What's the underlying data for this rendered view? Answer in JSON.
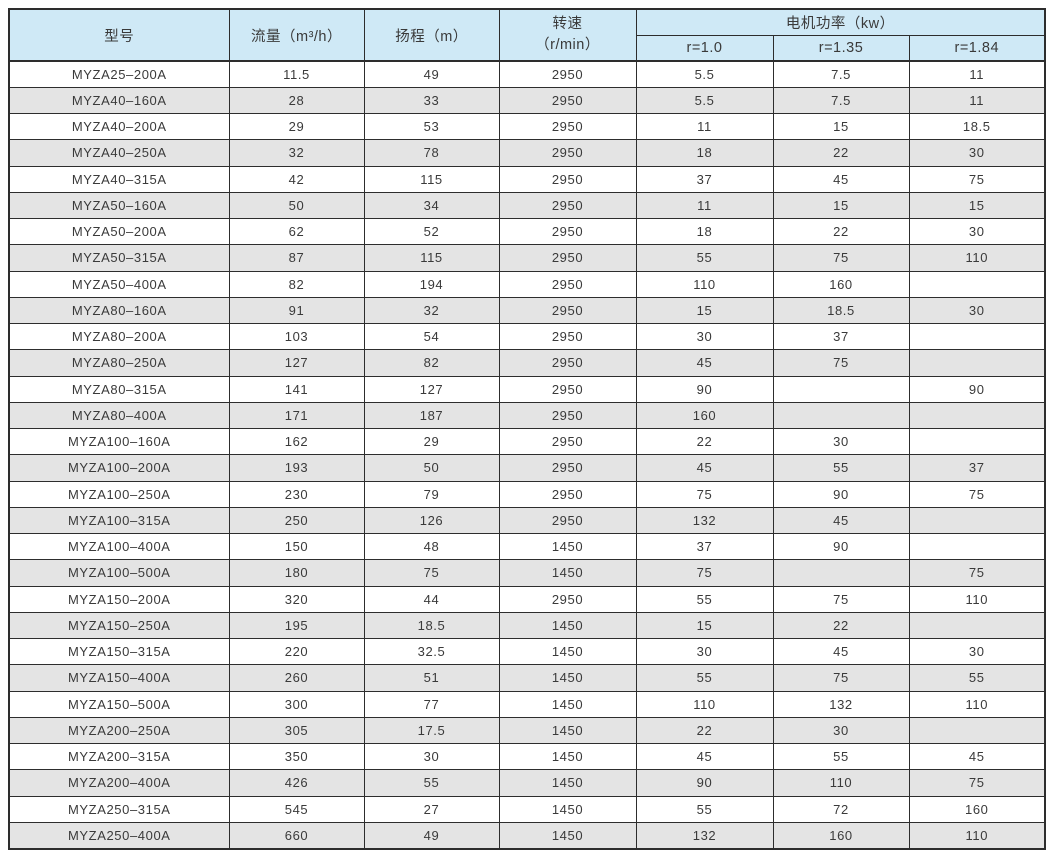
{
  "colors": {
    "header_bg": "#cfe9f6",
    "row_even_bg": "#e4e4e4",
    "row_odd_bg": "#ffffff",
    "border": "#2d2d2d",
    "text": "#3a3a3a"
  },
  "table": {
    "headers": {
      "model": "型号",
      "flow": "流量（m³/h）",
      "head": "扬程（m）",
      "speed_line1": "转速",
      "speed_line2": "（r/min）",
      "power_group": "电机功率（kw）",
      "power_cols": [
        "r=1.0",
        "r=1.35",
        "r=1.84"
      ]
    },
    "column_keys": [
      "model",
      "flow",
      "head",
      "speed",
      "power-r1-0",
      "power-r1-35",
      "power-r1-84"
    ],
    "rows": [
      [
        "MYZA25–200A",
        "11.5",
        "49",
        "2950",
        "5.5",
        "7.5",
        "11"
      ],
      [
        "MYZA40–160A",
        "28",
        "33",
        "2950",
        "5.5",
        "7.5",
        "11"
      ],
      [
        "MYZA40–200A",
        "29",
        "53",
        "2950",
        "11",
        "15",
        "18.5"
      ],
      [
        "MYZA40–250A",
        "32",
        "78",
        "2950",
        "18",
        "22",
        "30"
      ],
      [
        "MYZA40–315A",
        "42",
        "115",
        "2950",
        "37",
        "45",
        "75"
      ],
      [
        "MYZA50–160A",
        "50",
        "34",
        "2950",
        "11",
        "15",
        "15"
      ],
      [
        "MYZA50–200A",
        "62",
        "52",
        "2950",
        "18",
        "22",
        "30"
      ],
      [
        "MYZA50–315A",
        "87",
        "115",
        "2950",
        "55",
        "75",
        "110"
      ],
      [
        "MYZA50–400A",
        "82",
        "194",
        "2950",
        "110",
        "160",
        ""
      ],
      [
        "MYZA80–160A",
        "91",
        "32",
        "2950",
        "15",
        "18.5",
        "30"
      ],
      [
        "MYZA80–200A",
        "103",
        "54",
        "2950",
        "30",
        "37",
        ""
      ],
      [
        "MYZA80–250A",
        "127",
        "82",
        "2950",
        "45",
        "75",
        ""
      ],
      [
        "MYZA80–315A",
        "141",
        "127",
        "2950",
        "90",
        "",
        "90"
      ],
      [
        "MYZA80–400A",
        "171",
        "187",
        "2950",
        "160",
        "",
        ""
      ],
      [
        "MYZA100–160A",
        "162",
        "29",
        "2950",
        "22",
        "30",
        ""
      ],
      [
        "MYZA100–200A",
        "193",
        "50",
        "2950",
        "45",
        "55",
        "37"
      ],
      [
        "MYZA100–250A",
        "230",
        "79",
        "2950",
        "75",
        "90",
        "75"
      ],
      [
        "MYZA100–315A",
        "250",
        "126",
        "2950",
        "132",
        "45",
        ""
      ],
      [
        "MYZA100–400A",
        "150",
        "48",
        "1450",
        "37",
        "90",
        ""
      ],
      [
        "MYZA100–500A",
        "180",
        "75",
        "1450",
        "75",
        "",
        "75"
      ],
      [
        "MYZA150–200A",
        "320",
        "44",
        "2950",
        "55",
        "75",
        "110"
      ],
      [
        "MYZA150–250A",
        "195",
        "18.5",
        "1450",
        "15",
        "22",
        ""
      ],
      [
        "MYZA150–315A",
        "220",
        "32.5",
        "1450",
        "30",
        "45",
        "30"
      ],
      [
        "MYZA150–400A",
        "260",
        "51",
        "1450",
        "55",
        "75",
        "55"
      ],
      [
        "MYZA150–500A",
        "300",
        "77",
        "1450",
        "110",
        "132",
        "110"
      ],
      [
        "MYZA200–250A",
        "305",
        "17.5",
        "1450",
        "22",
        "30",
        ""
      ],
      [
        "MYZA200–315A",
        "350",
        "30",
        "1450",
        "45",
        "55",
        "45"
      ],
      [
        "MYZA200–400A",
        "426",
        "55",
        "1450",
        "90",
        "110",
        "75"
      ],
      [
        "MYZA250–315A",
        "545",
        "27",
        "1450",
        "55",
        "72",
        "160"
      ],
      [
        "MYZA250–400A",
        "660",
        "49",
        "1450",
        "132",
        "160",
        "110"
      ]
    ]
  }
}
